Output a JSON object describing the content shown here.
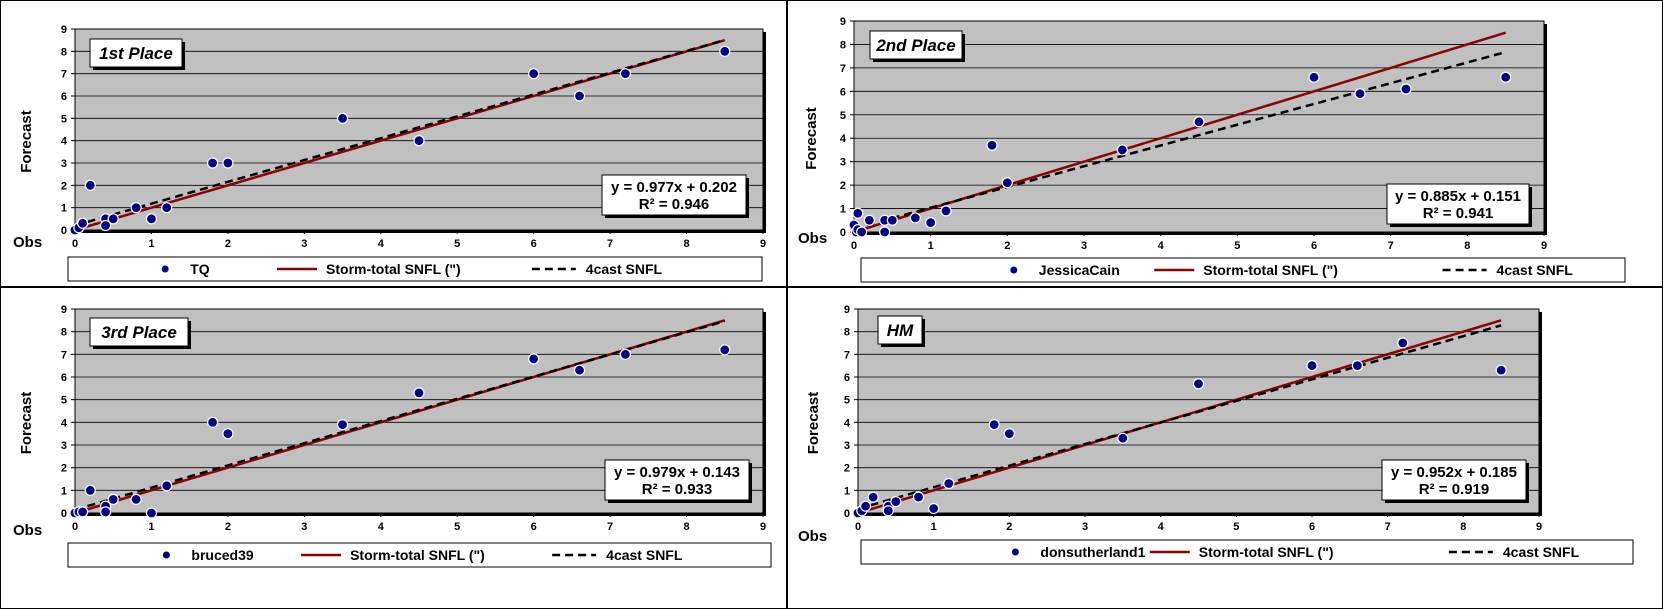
{
  "colors": {
    "plot_bg": "#c0c0c0",
    "grid": "#000000",
    "point_fill": "#000080",
    "point_edge": "#ffffff",
    "line_color": "#8b0000",
    "forecast_line_color": "#000000"
  },
  "chart_data": [
    {
      "type": "scatter",
      "title": "1st Place",
      "xlabel": "Obs",
      "ylabel": "Forecast",
      "xlim": [
        0,
        9
      ],
      "ylim": [
        0,
        9
      ],
      "grid": "horizontal",
      "legend_position": "bottom",
      "series": [
        {
          "name": "TQ",
          "kind": "points",
          "x": [
            0,
            0.05,
            0.1,
            0.2,
            0.4,
            0.4,
            0.5,
            0.8,
            1,
            1.2,
            1.8,
            2,
            3.5,
            4.5,
            6,
            6.6,
            7.2,
            8.5
          ],
          "y": [
            0,
            0.1,
            0.3,
            2,
            0.5,
            0.2,
            0.5,
            1,
            0.5,
            1,
            3,
            3,
            5,
            4,
            7,
            6,
            7,
            8
          ]
        },
        {
          "name": "Storm-total SNFL (\")",
          "kind": "line",
          "x": [
            0,
            8.5
          ],
          "y": [
            0,
            8.5
          ]
        },
        {
          "name": "4cast SNFL",
          "kind": "dashed",
          "x": [
            0,
            8.5
          ],
          "y": [
            0.202,
            8.5045
          ]
        }
      ],
      "annotation": {
        "equation": "y = 0.977x + 0.202",
        "r2": "R² = 0.946"
      }
    },
    {
      "type": "scatter",
      "title": "2nd Place",
      "xlabel": "Obs",
      "ylabel": "Forecast",
      "xlim": [
        0,
        9
      ],
      "ylim": [
        0,
        9
      ],
      "grid": "horizontal",
      "legend_position": "bottom",
      "series": [
        {
          "name": "JessicaCain",
          "kind": "points",
          "x": [
            0,
            0.03,
            0.05,
            0.05,
            0.1,
            0.2,
            0.4,
            0.4,
            0.5,
            0.8,
            1,
            1.2,
            1.8,
            2,
            3.5,
            4.5,
            6,
            6.6,
            7.2,
            8.5
          ],
          "y": [
            0.3,
            0,
            0.8,
            0.1,
            0,
            0.5,
            0.5,
            0,
            0.5,
            0.6,
            0.4,
            0.9,
            3.7,
            2.1,
            3.5,
            4.7,
            6.6,
            5.9,
            6.1,
            6.6
          ]
        },
        {
          "name": "Storm-total SNFL (\")",
          "kind": "line",
          "x": [
            0,
            8.5
          ],
          "y": [
            0,
            8.5
          ]
        },
        {
          "name": "4cast SNFL",
          "kind": "dashed",
          "x": [
            0,
            8.5
          ],
          "y": [
            0.151,
            7.6735
          ]
        }
      ],
      "annotation": {
        "equation": "y = 0.885x + 0.151",
        "r2": "R² = 0.941"
      }
    },
    {
      "type": "scatter",
      "title": "3rd Place",
      "xlabel": "Obs",
      "ylabel": "Forecast",
      "xlim": [
        0,
        9
      ],
      "ylim": [
        0,
        9
      ],
      "grid": "horizontal",
      "legend_position": "bottom",
      "series": [
        {
          "name": "bruced39",
          "kind": "points",
          "x": [
            0,
            0.05,
            0.1,
            0.2,
            0.4,
            0.4,
            0.5,
            0.8,
            1,
            1.2,
            1.8,
            2,
            3.5,
            4.5,
            6,
            6.6,
            7.2,
            8.5
          ],
          "y": [
            0,
            0.05,
            0.05,
            1,
            0.3,
            0.05,
            0.6,
            0.6,
            0,
            1.2,
            4,
            3.5,
            3.9,
            5.3,
            6.8,
            6.3,
            7,
            7.2
          ]
        },
        {
          "name": "Storm-total SNFL (\")",
          "kind": "line",
          "x": [
            0,
            8.5
          ],
          "y": [
            0,
            8.5
          ]
        },
        {
          "name": "4cast SNFL",
          "kind": "dashed",
          "x": [
            0,
            8.5
          ],
          "y": [
            0.143,
            8.4645
          ]
        }
      ],
      "annotation": {
        "equation": "y = 0.979x + 0.143",
        "r2": "R² = 0.933"
      }
    },
    {
      "type": "scatter",
      "title": "HM",
      "xlabel": "Obs",
      "ylabel": "Forecast",
      "xlim": [
        0,
        9
      ],
      "ylim": [
        0,
        9
      ],
      "grid": "horizontal",
      "legend_position": "bottom",
      "series": [
        {
          "name": "donsutherland1",
          "kind": "points",
          "x": [
            0,
            0.05,
            0.1,
            0.2,
            0.4,
            0.4,
            0.5,
            0.8,
            1,
            1.2,
            1.8,
            2,
            3.5,
            4.5,
            6,
            6.6,
            7.2,
            8.5
          ],
          "y": [
            0,
            0.1,
            0.3,
            0.7,
            0.3,
            0.1,
            0.5,
            0.7,
            0.2,
            1.3,
            3.9,
            3.5,
            3.3,
            5.7,
            6.5,
            6.5,
            7.5,
            6.3
          ]
        },
        {
          "name": "Storm-total SNFL (\")",
          "kind": "line",
          "x": [
            0,
            8.5
          ],
          "y": [
            0,
            8.5
          ]
        },
        {
          "name": "4cast SNFL",
          "kind": "dashed",
          "x": [
            0,
            8.5
          ],
          "y": [
            0.185,
            8.277
          ]
        }
      ],
      "annotation": {
        "equation": "y = 0.952x + 0.185",
        "r2": "R² = 0.919"
      }
    }
  ]
}
